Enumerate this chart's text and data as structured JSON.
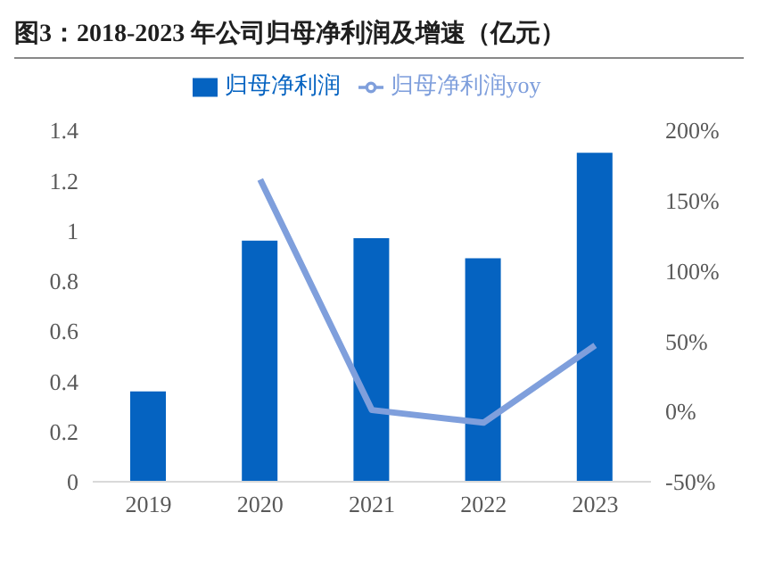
{
  "chart_data": {
    "type": "bar",
    "title": "图3：2018-2023 年公司归母净利润及增速（亿元）",
    "categories": [
      "2019",
      "2020",
      "2021",
      "2022",
      "2023"
    ],
    "series": [
      {
        "name": "归母净利润",
        "color": "#0563c1",
        "values": [
          0.36,
          0.96,
          0.97,
          0.89,
          1.31
        ]
      },
      {
        "name": "归母净利润yoy",
        "type": "line",
        "axis": "y2",
        "color": "#7f9fdc",
        "values": [
          null,
          165,
          1,
          -8,
          47
        ]
      }
    ],
    "ylim": [
      0,
      1.4
    ],
    "yticks": [
      0,
      0.2,
      0.4,
      0.6,
      0.8,
      1,
      1.2,
      1.4
    ],
    "y2lim": [
      -50,
      200
    ],
    "y2ticks": [
      {
        "value": -50,
        "label": "-50%"
      },
      {
        "value": 0,
        "label": "0%"
      },
      {
        "value": 50,
        "label": "50%"
      },
      {
        "value": 100,
        "label": "100%"
      },
      {
        "value": 150,
        "label": "150%"
      },
      {
        "value": 200,
        "label": "200%"
      }
    ],
    "grid": false,
    "legend": "top",
    "marker": "none"
  }
}
